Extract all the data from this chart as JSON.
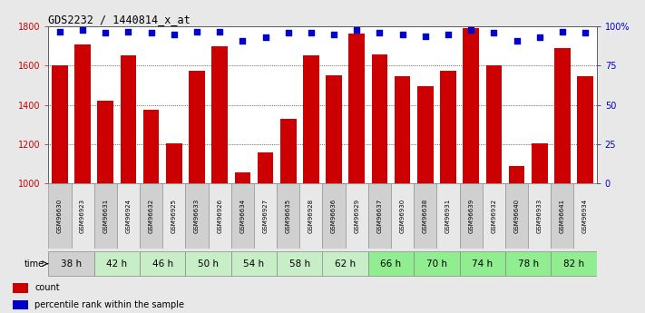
{
  "title": "GDS2232 / 1440814_x_at",
  "samples": [
    "GSM96630",
    "GSM96923",
    "GSM96631",
    "GSM96924",
    "GSM96632",
    "GSM96925",
    "GSM96633",
    "GSM96926",
    "GSM96634",
    "GSM96927",
    "GSM96635",
    "GSM96928",
    "GSM96636",
    "GSM96929",
    "GSM96637",
    "GSM96930",
    "GSM96638",
    "GSM96931",
    "GSM96639",
    "GSM96932",
    "GSM96640",
    "GSM96933",
    "GSM96641",
    "GSM96934"
  ],
  "counts": [
    1600,
    1710,
    1420,
    1655,
    1375,
    1205,
    1575,
    1700,
    1055,
    1155,
    1330,
    1655,
    1550,
    1765,
    1660,
    1545,
    1495,
    1575,
    1790,
    1600,
    1085,
    1205,
    1690,
    1545
  ],
  "percentile_ranks": [
    97,
    98,
    96,
    97,
    96,
    95,
    97,
    97,
    91,
    93,
    96,
    96,
    95,
    98,
    96,
    95,
    94,
    95,
    98,
    96,
    91,
    93,
    97,
    96
  ],
  "time_groups": [
    {
      "label": "38 h",
      "start": 0,
      "end": 2,
      "color": "#d0d0d0"
    },
    {
      "label": "42 h",
      "start": 2,
      "end": 4,
      "color": "#c8eec8"
    },
    {
      "label": "46 h",
      "start": 4,
      "end": 6,
      "color": "#c8eec8"
    },
    {
      "label": "50 h",
      "start": 6,
      "end": 8,
      "color": "#c8eec8"
    },
    {
      "label": "54 h",
      "start": 8,
      "end": 10,
      "color": "#c8eec8"
    },
    {
      "label": "58 h",
      "start": 10,
      "end": 12,
      "color": "#c8eec8"
    },
    {
      "label": "62 h",
      "start": 12,
      "end": 14,
      "color": "#c8eec8"
    },
    {
      "label": "66 h",
      "start": 14,
      "end": 16,
      "color": "#90ee90"
    },
    {
      "label": "70 h",
      "start": 16,
      "end": 18,
      "color": "#90ee90"
    },
    {
      "label": "74 h",
      "start": 18,
      "end": 20,
      "color": "#90ee90"
    },
    {
      "label": "78 h",
      "start": 20,
      "end": 22,
      "color": "#90ee90"
    },
    {
      "label": "82 h",
      "start": 22,
      "end": 24,
      "color": "#90ee90"
    }
  ],
  "sample_cell_colors": [
    "#d0d0d0",
    "#e8e8e8",
    "#d0d0d0",
    "#e8e8e8",
    "#d0d0d0",
    "#e8e8e8",
    "#d0d0d0",
    "#e8e8e8",
    "#d0d0d0",
    "#e8e8e8",
    "#d0d0d0",
    "#e8e8e8",
    "#d0d0d0",
    "#e8e8e8",
    "#d0d0d0",
    "#e8e8e8",
    "#d0d0d0",
    "#e8e8e8",
    "#d0d0d0",
    "#e8e8e8",
    "#d0d0d0",
    "#e8e8e8",
    "#d0d0d0",
    "#e8e8e8"
  ],
  "bar_color": "#cc0000",
  "dot_color": "#0000cc",
  "ylim_left": [
    1000,
    1800
  ],
  "ylim_right": [
    0,
    100
  ],
  "yticks_left": [
    1000,
    1200,
    1400,
    1600,
    1800
  ],
  "yticks_right": [
    0,
    25,
    50,
    75,
    100
  ],
  "ytick_right_labels": [
    "0",
    "25",
    "50",
    "75",
    "100%"
  ],
  "bg_color": "#e8e8e8",
  "plot_bg_color": "#ffffff",
  "legend_count_label": "count",
  "legend_pct_label": "percentile rank within the sample"
}
